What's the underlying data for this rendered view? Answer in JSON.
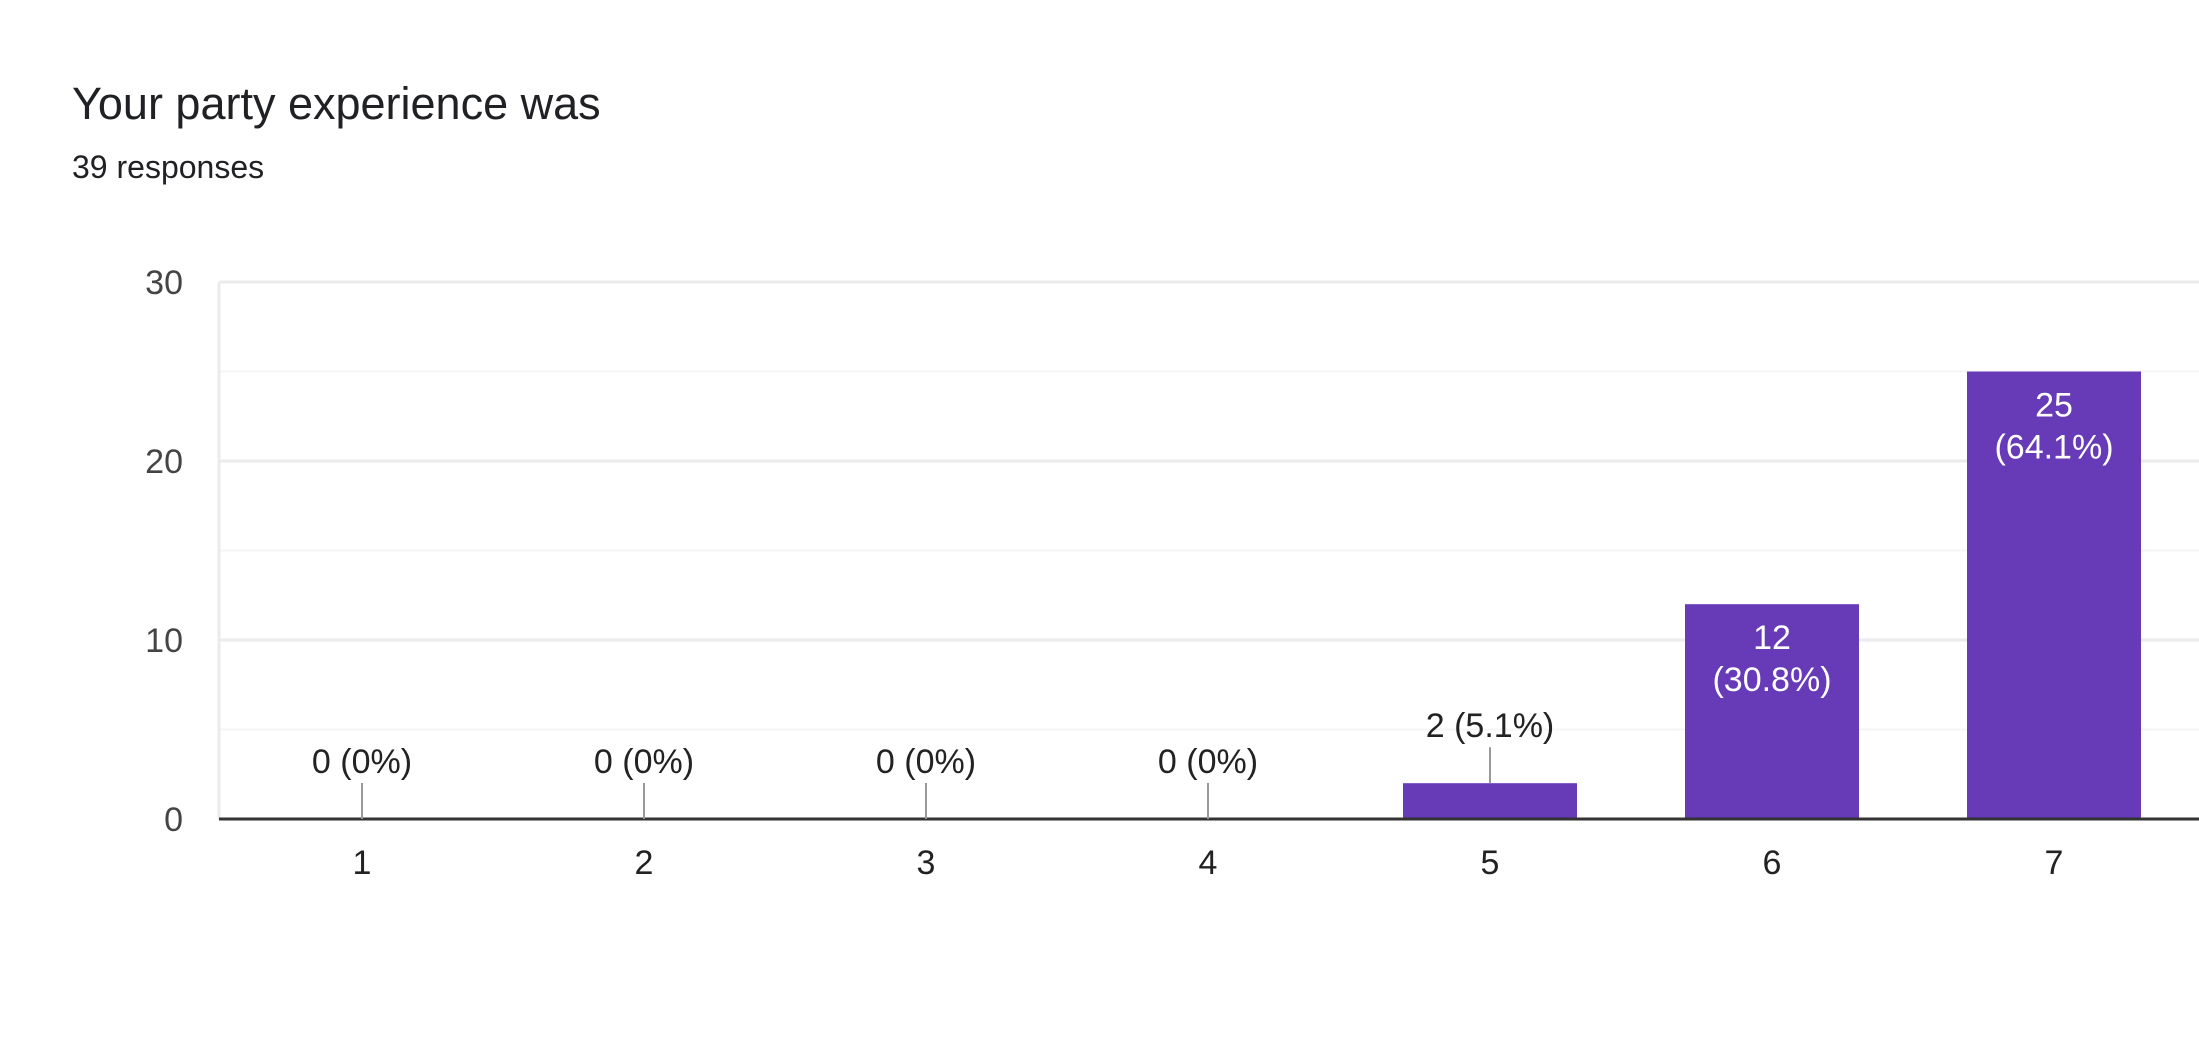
{
  "chart_data": {
    "type": "bar",
    "title": "Your party experience was",
    "subtitle": "39 responses",
    "categories": [
      "1",
      "2",
      "3",
      "4",
      "5",
      "6",
      "7"
    ],
    "values": [
      0,
      0,
      0,
      0,
      2,
      12,
      25
    ],
    "data_labels": [
      "0 (0%)",
      "0 (0%)",
      "0 (0%)",
      "0 (0%)",
      "2 (5.1%)",
      "12\n(30.8%)",
      "25\n(64.1%)"
    ],
    "ylim": [
      0,
      30
    ],
    "yticks": [
      0,
      10,
      20,
      30
    ],
    "grid": true,
    "bar_color": "#673ab7",
    "xlabel": "",
    "ylabel": ""
  }
}
